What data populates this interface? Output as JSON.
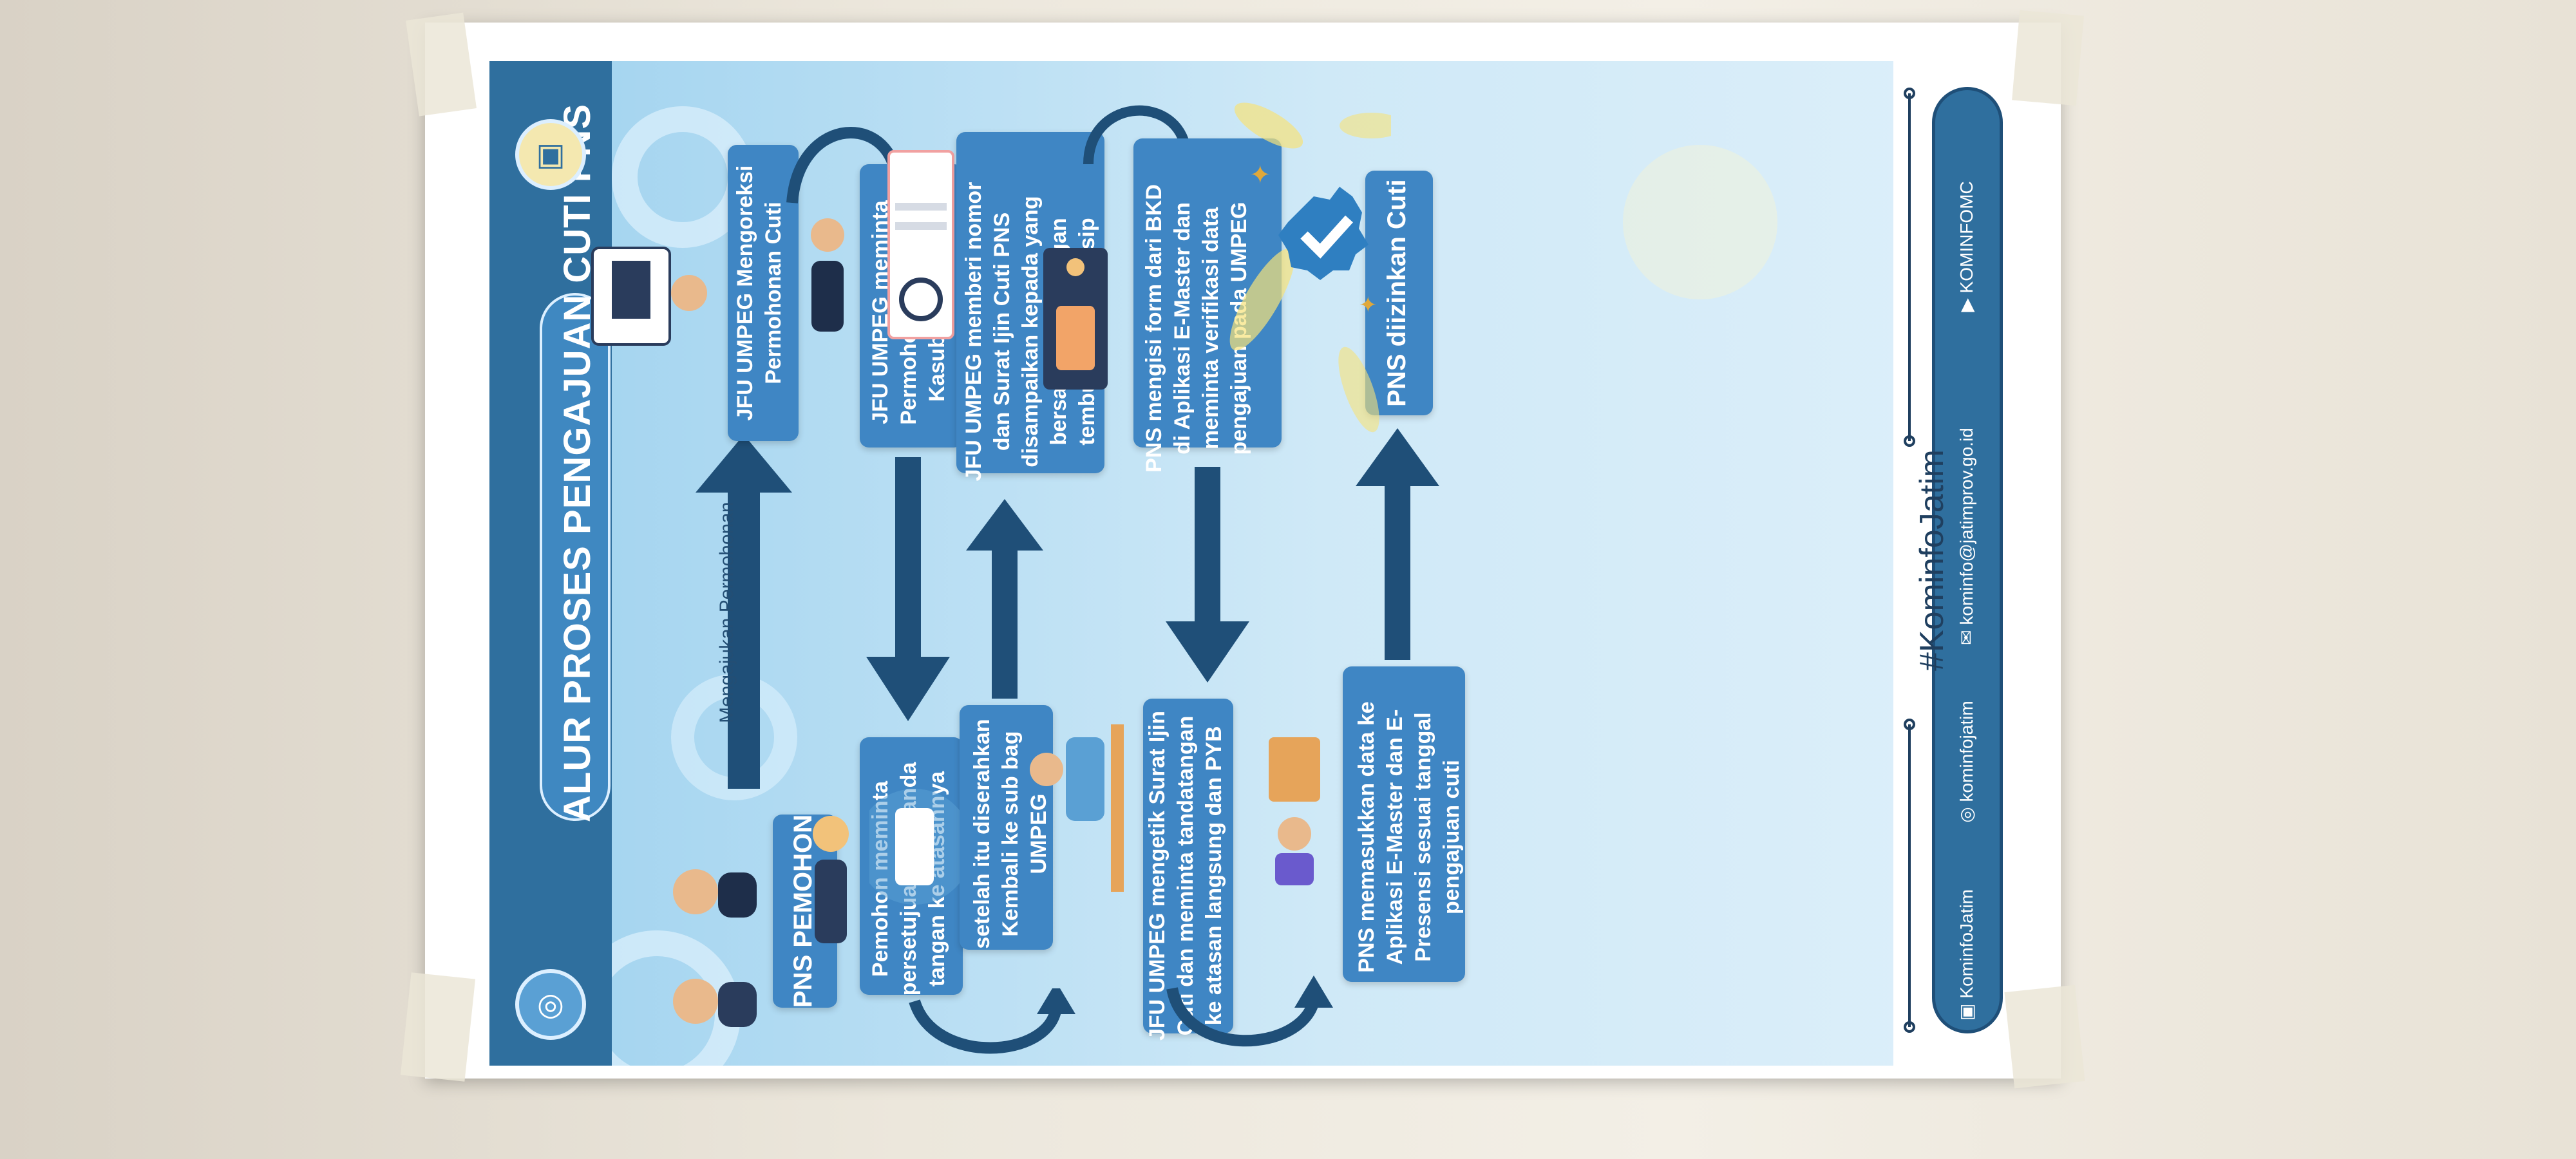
{
  "title": "ALUR PROSES PENGAJUAN CUTI PNS",
  "connector_label": "Mengajukan Permohonan",
  "steps": [
    "PNS PEMOHON",
    "JFU UMPEG Mengoreksi Permohonan Cuti",
    "Pemohon meminta persetujuan dan tanda tangan ke atasannya",
    "JFU UMPEG meminta Permohonan Paraf ke Kasubag UMPEG",
    "setelah itu diserahkan Kembali ke sub bag UMPEG",
    "JFU UMPEG memberi nomor dan Surat Ijin Cuti PNS disampaikan kepada yang bersangkutan dengan tembusan untuk arsip",
    "JFU UMPEG mengetik Surat Ijin Cuti dan meminta tandatangan ke atasan langsung dan PYB",
    "PNS mengisi form dari BKD di Aplikasi E-Master dan meminta verifikasi data pengajuan pada UMPEG",
    "PNS memasukkan data ke Aplikasi E-Master dan E-Presensi sesuai tanggal pengajuan cuti",
    "PNS diizinkan Cuti"
  ],
  "footer": {
    "hashtag": "#KominfoJatim",
    "twitter": "KominfoJatim",
    "instagram": "kominfojatim",
    "email": "kominfo@jatimprov.go.id",
    "youtube": "KOMINFOMC"
  },
  "colors": {
    "header": "#2f6f9e",
    "box": "#3f86c4",
    "arrow": "#1f4f78",
    "background": "#cfe9f7"
  }
}
